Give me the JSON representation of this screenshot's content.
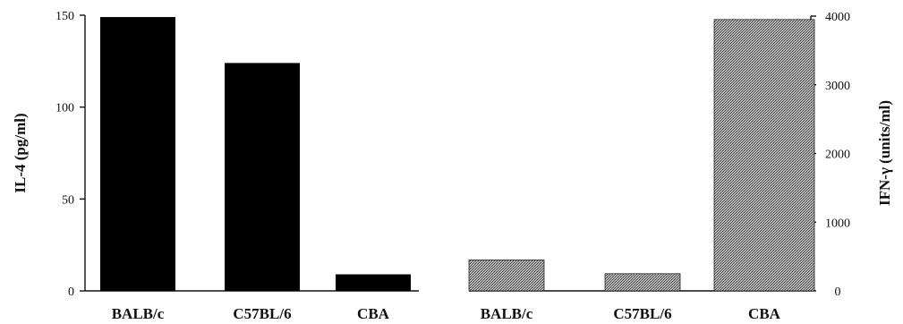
{
  "chart_data": [
    {
      "type": "bar",
      "categories": [
        "BALB/c",
        "C57BL/6",
        "CBA"
      ],
      "values": [
        149,
        124,
        9
      ],
      "ylabel": "IL-4 (pg/ml)",
      "ylim": [
        0,
        150
      ],
      "yticks": [
        0,
        50,
        100,
        150
      ],
      "y_axis_side": "left",
      "bar_color": "#000000",
      "bar_fill": "solid"
    },
    {
      "type": "bar",
      "categories": [
        "BALB/c",
        "C57BL/6",
        "CBA"
      ],
      "values": [
        450,
        250,
        3950
      ],
      "ylabel": "IFN-γ (units/ml)",
      "ylim": [
        0,
        4000
      ],
      "yticks": [
        0,
        1000,
        2000,
        3000,
        4000
      ],
      "y_axis_side": "right",
      "bar_color": "#9a9a9a",
      "bar_fill": "stippled"
    }
  ]
}
